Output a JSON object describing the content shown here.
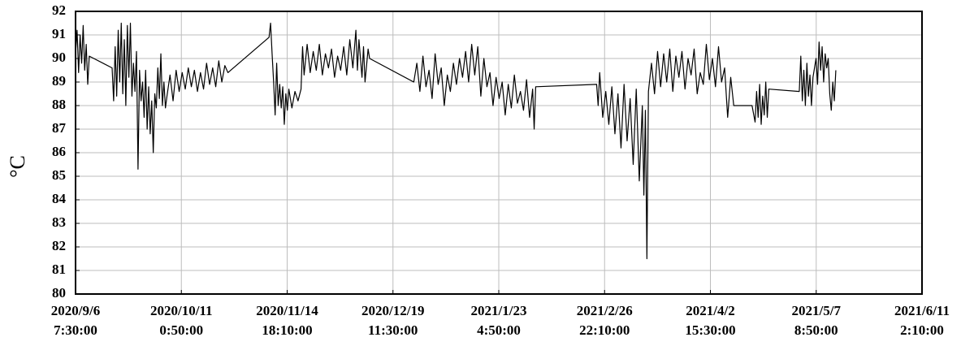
{
  "chart_data": {
    "type": "line",
    "y_label": "°C",
    "color": "#000000",
    "grid": true,
    "xlim": [
      "2020/9/6 7:30:00",
      "2021/6/11 2:10:00"
    ],
    "xticks": [
      {
        "value": "2020/9/6 7:30:00",
        "label": [
          "2020/9/6",
          "7:30:00"
        ]
      },
      {
        "value": "2020/10/11 0:50:00",
        "label": [
          "2020/10/11",
          "0:50:00"
        ]
      },
      {
        "value": "2020/11/14 18:10:00",
        "label": [
          "2020/11/14",
          "18:10:00"
        ]
      },
      {
        "value": "2020/12/19 11:30:00",
        "label": [
          "2020/12/19",
          "11:30:00"
        ]
      },
      {
        "value": "2021/1/23 4:50:00",
        "label": [
          "2021/1/23",
          "4:50:00"
        ]
      },
      {
        "value": "2021/2/26 22:10:00",
        "label": [
          "2021/2/26",
          "22:10:00"
        ]
      },
      {
        "value": "2021/4/2 15:30:00",
        "label": [
          "2021/4/2",
          "15:30:00"
        ]
      },
      {
        "value": "2021/5/7 8:50:00",
        "label": [
          "2021/5/7",
          "8:50:00"
        ]
      },
      {
        "value": "2021/6/11 2:10:00",
        "label": [
          "2021/6/11",
          "2:10:00"
        ]
      }
    ],
    "ylim": [
      80,
      92
    ],
    "yticks": [
      80,
      81,
      82,
      83,
      84,
      85,
      86,
      87,
      88,
      89,
      90,
      91,
      92
    ],
    "x": [
      "2020/9/6 7:30:00",
      "2020/9/6 19:30:00",
      "2020/9/7 7:30:00",
      "2020/9/7 19:30:00",
      "2020/9/8 7:30:00",
      "2020/9/8 19:30:00",
      "2020/9/9 7:30:00",
      "2020/9/9 19:30:00",
      "2020/9/10 7:30:00",
      "2020/9/10 19:30:00",
      "2020/9/18 7:30:00",
      "2020/9/18 19:30:00",
      "2020/9/19 7:30:00",
      "2020/9/19 19:30:00",
      "2020/9/20 7:30:00",
      "2020/9/20 19:30:00",
      "2020/9/21 7:30:00",
      "2020/9/21 19:30:00",
      "2020/9/22 7:30:00",
      "2020/9/22 19:30:00",
      "2020/9/23 7:30:00",
      "2020/9/23 19:30:00",
      "2020/9/24 7:30:00",
      "2020/9/24 19:30:00",
      "2020/9/25 7:30:00",
      "2020/9/25 19:30:00",
      "2020/9/26 7:30:00",
      "2020/9/26 19:30:00",
      "2020/9/27 7:30:00",
      "2020/9/27 19:30:00",
      "2020/9/28 7:30:00",
      "2020/9/28 19:30:00",
      "2020/9/29 7:30:00",
      "2020/9/29 19:30:00",
      "2020/9/30 7:30:00",
      "2020/9/30 19:30:00",
      "2020/10/1 7:30:00",
      "2020/10/1 19:30:00",
      "2020/10/2 7:30:00",
      "2020/10/2 19:30:00",
      "2020/10/3 7:30:00",
      "2020/10/3 19:30:00",
      "2020/10/4 7:30:00",
      "2020/10/4 19:30:00",
      "2020/10/5 7:30:00",
      "2020/10/5 19:30:00",
      "2020/10/6 7:30:00",
      "2020/10/7 7:30:00",
      "2020/10/8 7:30:00",
      "2020/10/9 7:30:00",
      "2020/10/10 7:30:00",
      "2020/10/11 7:30:00",
      "2020/10/12 7:30:00",
      "2020/10/13 7:30:00",
      "2020/10/14 7:30:00",
      "2020/10/15 7:30:00",
      "2020/10/16 7:30:00",
      "2020/10/17 7:30:00",
      "2020/10/18 7:30:00",
      "2020/10/19 7:30:00",
      "2020/10/20 7:30:00",
      "2020/10/21 7:30:00",
      "2020/10/22 7:30:00",
      "2020/10/23 7:30:00",
      "2020/10/24 7:30:00",
      "2020/10/25 7:30:00",
      "2020/10/26 7:30:00",
      "2020/11/8 19:30:00",
      "2020/11/9 7:30:00",
      "2020/11/9 19:30:00",
      "2020/11/10 7:30:00",
      "2020/11/10 19:30:00",
      "2020/11/11 7:30:00",
      "2020/11/11 19:30:00",
      "2020/11/12 7:30:00",
      "2020/11/12 19:30:00",
      "2020/11/13 7:30:00",
      "2020/11/13 19:30:00",
      "2020/11/14 7:30:00",
      "2020/11/14 19:30:00",
      "2020/11/15 7:30:00",
      "2020/11/16 7:30:00",
      "2020/11/17 7:30:00",
      "2020/11/18 7:30:00",
      "2020/11/19 7:30:00",
      "2020/11/19 19:30:00",
      "2020/11/20 7:30:00",
      "2020/11/21 7:30:00",
      "2020/11/22 7:30:00",
      "2020/11/23 7:30:00",
      "2020/11/24 7:30:00",
      "2020/11/25 7:30:00",
      "2020/11/26 7:30:00",
      "2020/11/27 7:30:00",
      "2020/11/28 7:30:00",
      "2020/11/29 7:30:00",
      "2020/11/30 7:30:00",
      "2020/12/1 7:30:00",
      "2020/12/2 7:30:00",
      "2020/12/3 7:30:00",
      "2020/12/4 7:30:00",
      "2020/12/5 7:30:00",
      "2020/12/6 7:30:00",
      "2020/12/7 7:30:00",
      "2020/12/7 19:30:00",
      "2020/12/8 7:30:00",
      "2020/12/9 7:30:00",
      "2020/12/9 19:30:00",
      "2020/12/10 7:30:00",
      "2020/12/11 7:30:00",
      "2020/12/11 19:30:00",
      "2020/12/26 7:30:00",
      "2020/12/27 7:30:00",
      "2020/12/28 7:30:00",
      "2020/12/29 7:30:00",
      "2020/12/30 7:30:00",
      "2020/12/31 7:30:00",
      "2021/1/1 7:30:00",
      "2021/1/2 7:30:00",
      "2021/1/3 7:30:00",
      "2021/1/4 7:30:00",
      "2021/1/5 7:30:00",
      "2021/1/6 7:30:00",
      "2021/1/7 7:30:00",
      "2021/1/8 7:30:00",
      "2021/1/9 7:30:00",
      "2021/1/10 7:30:00",
      "2021/1/11 7:30:00",
      "2021/1/12 7:30:00",
      "2021/1/13 7:30:00",
      "2021/1/14 7:30:00",
      "2021/1/15 7:30:00",
      "2021/1/16 7:30:00",
      "2021/1/17 7:30:00",
      "2021/1/18 7:30:00",
      "2021/1/19 7:30:00",
      "2021/1/20 7:30:00",
      "2021/1/21 7:30:00",
      "2021/1/22 7:30:00",
      "2021/1/23 7:30:00",
      "2021/1/24 7:30:00",
      "2021/1/25 7:30:00",
      "2021/1/26 7:30:00",
      "2021/1/27 7:30:00",
      "2021/1/28 7:30:00",
      "2021/1/29 7:30:00",
      "2021/1/30 7:30:00",
      "2021/1/31 7:30:00",
      "2021/2/1 7:30:00",
      "2021/2/2 7:30:00",
      "2021/2/3 7:30:00",
      "2021/2/3 19:30:00",
      "2021/2/4 7:30:00",
      "2021/2/24 7:30:00",
      "2021/2/24 19:30:00",
      "2021/2/25 7:30:00",
      "2021/2/26 7:30:00",
      "2021/2/27 7:30:00",
      "2021/2/28 7:30:00",
      "2021/3/1 7:30:00",
      "2021/3/2 7:30:00",
      "2021/3/3 7:30:00",
      "2021/3/4 7:30:00",
      "2021/3/5 7:30:00",
      "2021/3/6 7:30:00",
      "2021/3/7 7:30:00",
      "2021/3/8 7:30:00",
      "2021/3/9 7:30:00",
      "2021/3/10 7:30:00",
      "2021/3/11 7:30:00",
      "2021/3/11 19:30:00",
      "2021/3/12 7:30:00",
      "2021/3/12 19:30:00",
      "2021/3/13 7:30:00",
      "2021/3/14 7:30:00",
      "2021/3/15 7:30:00",
      "2021/3/16 7:30:00",
      "2021/3/17 7:30:00",
      "2021/3/18 7:30:00",
      "2021/3/19 7:30:00",
      "2021/3/20 7:30:00",
      "2021/3/21 7:30:00",
      "2021/3/22 7:30:00",
      "2021/3/23 7:30:00",
      "2021/3/24 7:30:00",
      "2021/3/25 7:30:00",
      "2021/3/26 7:30:00",
      "2021/3/27 7:30:00",
      "2021/3/28 7:30:00",
      "2021/3/29 7:30:00",
      "2021/3/30 7:30:00",
      "2021/3/31 7:30:00",
      "2021/4/1 7:30:00",
      "2021/4/2 7:30:00",
      "2021/4/3 7:30:00",
      "2021/4/4 7:30:00",
      "2021/4/5 7:30:00",
      "2021/4/6 7:30:00",
      "2021/4/7 7:30:00",
      "2021/4/8 7:30:00",
      "2021/4/9 7:30:00",
      "2021/4/10 7:30:00",
      "2021/4/16 7:30:00",
      "2021/4/17 7:30:00",
      "2021/4/17 19:30:00",
      "2021/4/18 7:30:00",
      "2021/4/18 19:30:00",
      "2021/4/19 7:30:00",
      "2021/4/19 19:30:00",
      "2021/4/20 7:30:00",
      "2021/4/20 19:30:00",
      "2021/4/21 7:30:00",
      "2021/4/21 19:30:00",
      "2021/5/1 19:30:00",
      "2021/5/2 7:30:00",
      "2021/5/2 19:30:00",
      "2021/5/3 7:30:00",
      "2021/5/3 19:30:00",
      "2021/5/4 7:30:00",
      "2021/5/4 19:30:00",
      "2021/5/5 7:30:00",
      "2021/5/5 19:30:00",
      "2021/5/6 7:30:00",
      "2021/5/7 7:30:00",
      "2021/5/7 19:30:00",
      "2021/5/8 7:30:00",
      "2021/5/8 19:30:00",
      "2021/5/9 7:30:00",
      "2021/5/9 19:30:00",
      "2021/5/10 7:30:00",
      "2021/5/10 19:30:00",
      "2021/5/11 7:30:00",
      "2021/5/11 19:30:00",
      "2021/5/12 7:30:00",
      "2021/5/12 19:30:00",
      "2021/5/13 7:30:00",
      "2021/5/13 19:30:00"
    ],
    "values": [
      90.2,
      91.2,
      89.4,
      91.0,
      89.8,
      91.4,
      89.5,
      90.6,
      88.9,
      90.1,
      89.6,
      88.2,
      90.5,
      88.4,
      91.2,
      89.0,
      91.5,
      88.5,
      90.8,
      88.0,
      91.4,
      89.2,
      91.5,
      88.4,
      89.8,
      88.6,
      90.3,
      85.3,
      89.5,
      88.2,
      89.0,
      87.5,
      89.5,
      87.0,
      88.8,
      86.8,
      88.2,
      86.0,
      88.5,
      87.9,
      89.6,
      88.3,
      90.2,
      88.0,
      89.0,
      87.9,
      88.4,
      89.3,
      88.2,
      89.5,
      88.6,
      89.4,
      88.7,
      89.6,
      88.8,
      89.5,
      88.6,
      89.4,
      88.7,
      89.8,
      88.9,
      89.6,
      88.8,
      89.9,
      89.0,
      89.7,
      89.4,
      90.9,
      91.5,
      90.2,
      89.0,
      87.6,
      89.8,
      88.0,
      88.9,
      87.9,
      88.8,
      87.2,
      88.5,
      87.8,
      88.7,
      87.9,
      88.6,
      88.2,
      88.7,
      90.5,
      89.3,
      90.6,
      89.4,
      90.3,
      89.5,
      90.6,
      89.3,
      90.2,
      89.6,
      90.4,
      89.2,
      90.1,
      89.5,
      90.5,
      89.3,
      90.8,
      89.6,
      91.2,
      89.5,
      90.8,
      89.2,
      90.5,
      89.0,
      90.4,
      90.0,
      89.0,
      89.8,
      88.6,
      90.1,
      88.8,
      89.5,
      88.3,
      90.2,
      88.9,
      89.6,
      88.0,
      89.3,
      88.6,
      89.8,
      88.9,
      90.0,
      89.2,
      90.3,
      89.0,
      90.6,
      89.3,
      90.5,
      88.4,
      90.0,
      88.8,
      89.4,
      88.0,
      89.2,
      88.3,
      89.0,
      87.6,
      88.9,
      87.9,
      89.3,
      88.1,
      88.6,
      87.8,
      89.1,
      87.5,
      88.7,
      87.0,
      88.8,
      88.9,
      88.0,
      89.4,
      87.5,
      88.6,
      87.2,
      88.8,
      86.8,
      88.5,
      86.2,
      88.9,
      86.5,
      88.3,
      85.5,
      88.7,
      84.8,
      88.0,
      84.2,
      87.8,
      81.5,
      88.6,
      89.8,
      88.5,
      90.3,
      88.8,
      90.2,
      89.0,
      90.4,
      88.6,
      90.1,
      89.2,
      90.3,
      88.7,
      90.0,
      89.3,
      90.4,
      88.5,
      89.4,
      88.9,
      90.6,
      89.1,
      90.0,
      88.8,
      90.5,
      89.0,
      89.6,
      87.5,
      89.2,
      88.0,
      88.0,
      87.3,
      88.6,
      87.5,
      88.9,
      87.2,
      88.4,
      87.6,
      89.0,
      87.5,
      88.7,
      88.6,
      90.1,
      88.2,
      89.5,
      88.0,
      89.8,
      88.4,
      89.3,
      88.0,
      89.2,
      90.0,
      88.9,
      90.7,
      89.5,
      90.5,
      89.0,
      90.2,
      89.6,
      90.0,
      88.5,
      87.8,
      89.0,
      88.2,
      89.5
    ]
  }
}
